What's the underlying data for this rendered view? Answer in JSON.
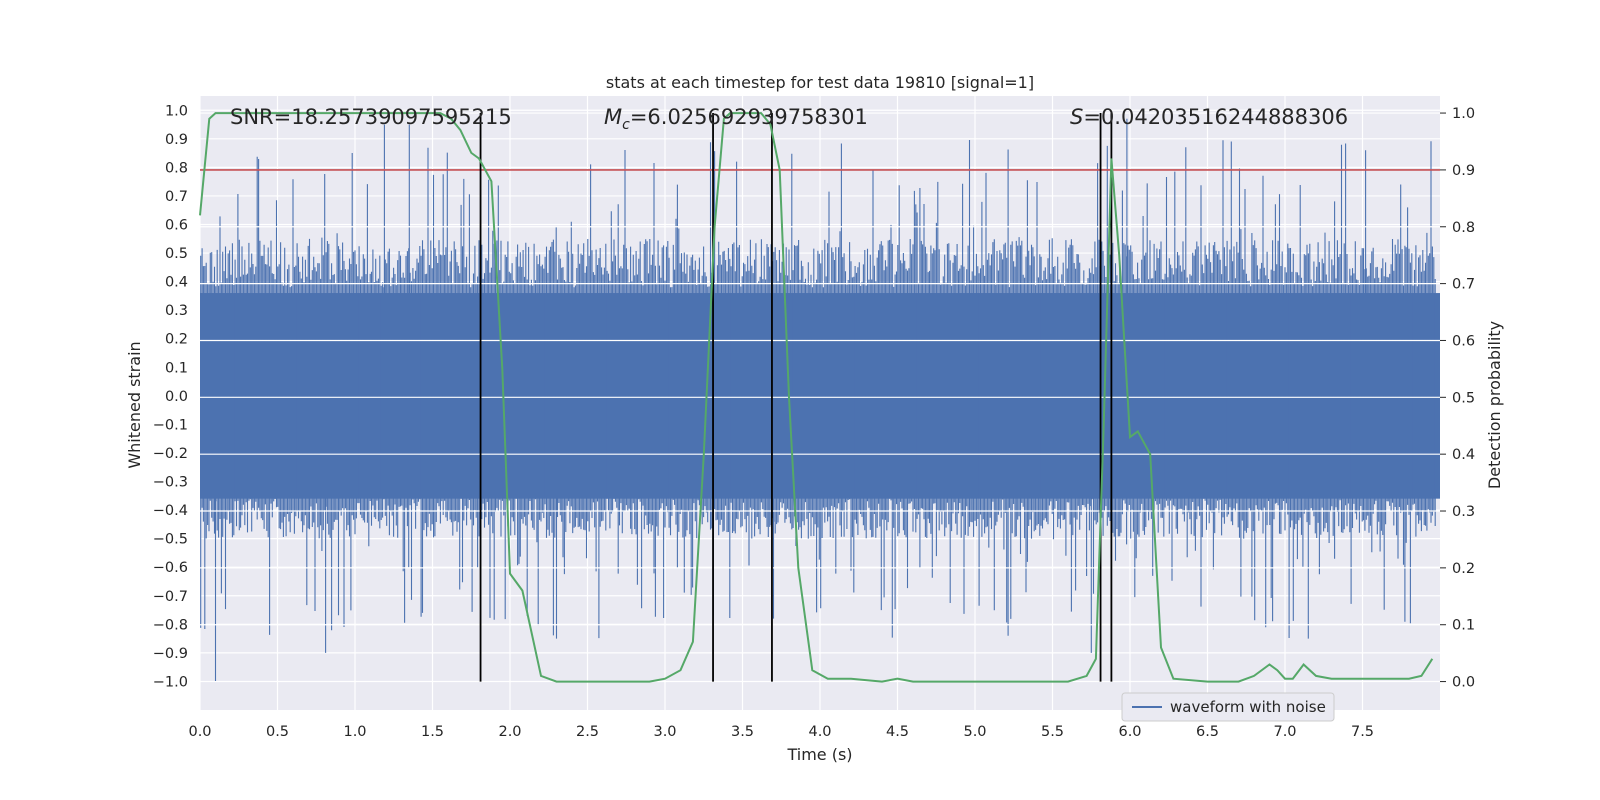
{
  "chart_data": {
    "type": "line",
    "title": "stats at each timestep for test data 19810 [signal=1]",
    "xlabel": "Time (s)",
    "ylabel_left": "Whitened strain",
    "ylabel_right": "Detection probability",
    "xlim": [
      0,
      8
    ],
    "ylim_left": [
      -1.1,
      1.05
    ],
    "ylim_right": [
      -0.05,
      1.03
    ],
    "x_ticks": [
      0.0,
      0.5,
      1.0,
      1.5,
      2.0,
      2.5,
      3.0,
      3.5,
      4.0,
      4.5,
      5.0,
      5.5,
      6.0,
      6.5,
      7.0,
      7.5
    ],
    "x_tick_labels": [
      "0.0",
      "0.5",
      "1.0",
      "1.5",
      "2.0",
      "2.5",
      "3.0",
      "3.5",
      "4.0",
      "4.5",
      "5.0",
      "5.5",
      "6.0",
      "6.5",
      "7.0",
      "7.5"
    ],
    "y_left_ticks": [
      1.0,
      0.9,
      0.8,
      0.7,
      0.6,
      0.5,
      0.4,
      0.3,
      0.2,
      0.1,
      0.0,
      -0.1,
      -0.2,
      -0.3,
      -0.4,
      -0.5,
      -0.6,
      -0.7,
      -0.8,
      -0.9,
      -1.0
    ],
    "y_left_tick_labels": [
      "1.0",
      "0.9",
      "0.8",
      "0.7",
      "0.6",
      "0.5",
      "0.4",
      "0.3",
      "0.2",
      "0.1",
      "0.0",
      "−0.1",
      "−0.2",
      "−0.3",
      "−0.4",
      "−0.5",
      "−0.6",
      "−0.7",
      "−0.8",
      "−0.9",
      "−1.0"
    ],
    "y_right_ticks": [
      1.0,
      0.9,
      0.8,
      0.7,
      0.6,
      0.5,
      0.4,
      0.3,
      0.2,
      0.1,
      0.0
    ],
    "y_right_tick_labels": [
      "1.0",
      "0.9",
      "0.8",
      "0.7",
      "0.6",
      "0.5",
      "0.4",
      "0.3",
      "0.2",
      "0.1",
      "0.0"
    ],
    "annotations": {
      "snr": "SNR=18.25739097595215",
      "mc_symbol": "M",
      "mc_subscript": "c",
      "mc_value": "=6.025692939758301",
      "s_symbol": "S",
      "s_value": "=0.04203516244888306"
    },
    "legend": [
      "waveform with noise"
    ],
    "threshold": 0.9,
    "vertical_lines": [
      1.81,
      3.31,
      3.69,
      5.81,
      5.88
    ],
    "waveform": {
      "name": "waveform with noise",
      "note": "dense whitened strain noise, roughly uniform envelope across 0-8 s",
      "typical_max": 0.55,
      "typical_min": -0.5,
      "peak_max": 0.97,
      "peak_min": -1.0
    },
    "probability": {
      "name": "detection probability",
      "x": [
        0.0,
        0.06,
        0.1,
        0.2,
        0.4,
        0.6,
        0.8,
        1.0,
        1.2,
        1.4,
        1.55,
        1.62,
        1.68,
        1.75,
        1.8,
        1.88,
        1.95,
        2.0,
        2.08,
        2.2,
        2.3,
        2.5,
        2.7,
        2.9,
        3.0,
        3.1,
        3.18,
        3.25,
        3.32,
        3.38,
        3.42,
        3.48,
        3.55,
        3.62,
        3.68,
        3.74,
        3.8,
        3.86,
        3.95,
        4.05,
        4.2,
        4.4,
        4.5,
        4.6,
        4.8,
        5.0,
        5.2,
        5.4,
        5.6,
        5.72,
        5.78,
        5.83,
        5.88,
        5.93,
        6.0,
        6.05,
        6.13,
        6.2,
        6.28,
        6.5,
        6.7,
        6.8,
        6.9,
        6.95,
        7.0,
        7.05,
        7.12,
        7.2,
        7.3,
        7.4,
        7.6,
        7.8,
        7.88,
        7.95
      ],
      "y": [
        0.82,
        0.99,
        1.0,
        1.0,
        1.0,
        1.0,
        1.0,
        1.0,
        1.0,
        1.0,
        1.0,
        0.99,
        0.97,
        0.93,
        0.92,
        0.88,
        0.55,
        0.19,
        0.16,
        0.01,
        0.0,
        0.0,
        0.0,
        0.0,
        0.005,
        0.02,
        0.07,
        0.4,
        0.8,
        0.99,
        1.0,
        1.0,
        1.0,
        1.0,
        0.98,
        0.9,
        0.5,
        0.2,
        0.02,
        0.005,
        0.005,
        0.0,
        0.005,
        0.0,
        0.0,
        0.0,
        0.0,
        0.0,
        0.0,
        0.01,
        0.04,
        0.45,
        0.92,
        0.75,
        0.43,
        0.44,
        0.4,
        0.06,
        0.005,
        0.0,
        0.0,
        0.01,
        0.03,
        0.02,
        0.005,
        0.005,
        0.03,
        0.01,
        0.005,
        0.005,
        0.005,
        0.005,
        0.01,
        0.04
      ]
    },
    "colors": {
      "background": "#eaeaf2",
      "grid": "#ffffff",
      "waveform": "#4c72b0",
      "probability": "#55a868",
      "threshold": "#c44e52",
      "vertical": "#000000",
      "text": "#262626"
    }
  }
}
